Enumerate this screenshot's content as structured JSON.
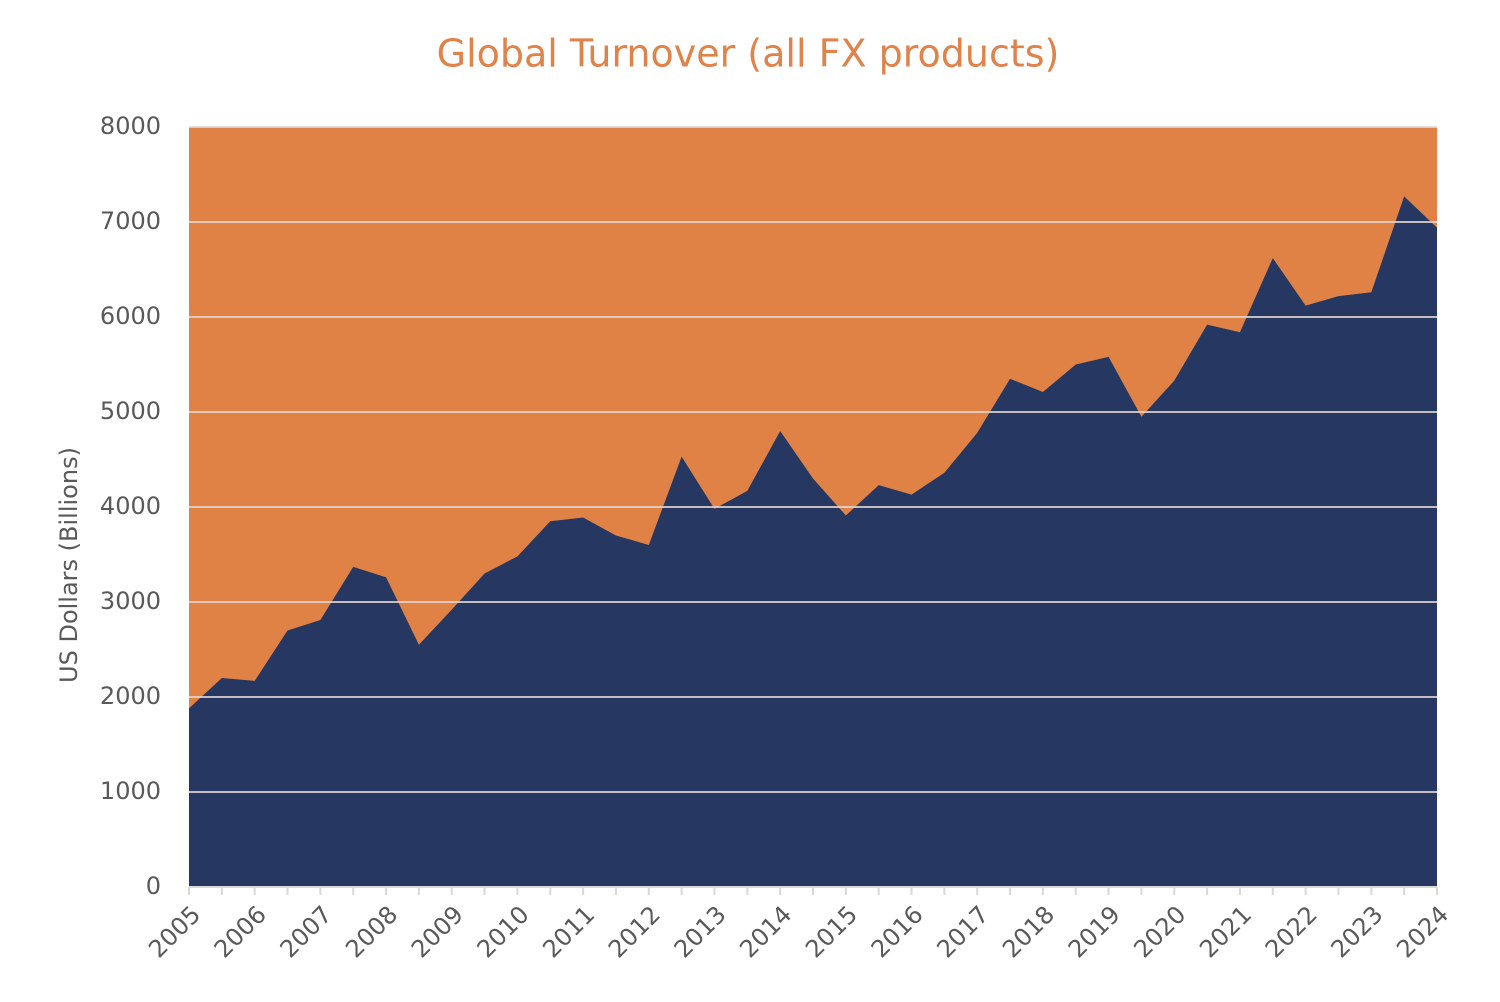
{
  "chart_data": {
    "type": "area",
    "title": "Global Turnover (all FX products)",
    "y_label": "US Dollars  (Billions)",
    "categories": [
      "2005",
      null,
      "2006",
      null,
      "2007",
      null,
      "2008",
      null,
      "2009",
      null,
      "2010",
      null,
      "2011",
      null,
      "2012",
      null,
      "2013",
      null,
      "2014",
      null,
      "2015",
      null,
      "2016",
      null,
      "2017",
      null,
      "2018",
      null,
      "2019",
      null,
      "2020",
      null,
      "2021",
      null,
      "2022",
      null,
      "2023",
      null,
      "2024"
    ],
    "values": [
      1880,
      2200,
      2170,
      2700,
      2810,
      3370,
      3260,
      2550,
      2920,
      3300,
      3480,
      3850,
      3890,
      3700,
      3600,
      4530,
      3980,
      4170,
      4800,
      4300,
      3910,
      4230,
      4130,
      4360,
      4780,
      5350,
      5210,
      5500,
      5580,
      4950,
      5330,
      5920,
      5840,
      6620,
      6120,
      6220,
      6260,
      7270,
      6940
    ],
    "color": "#263862",
    "background": "#e08245",
    "ylim": [
      0,
      8000
    ],
    "yticks": [
      0,
      1000,
      2000,
      3000,
      4000,
      5000,
      6000,
      7000,
      8000
    ],
    "grid": true
  }
}
